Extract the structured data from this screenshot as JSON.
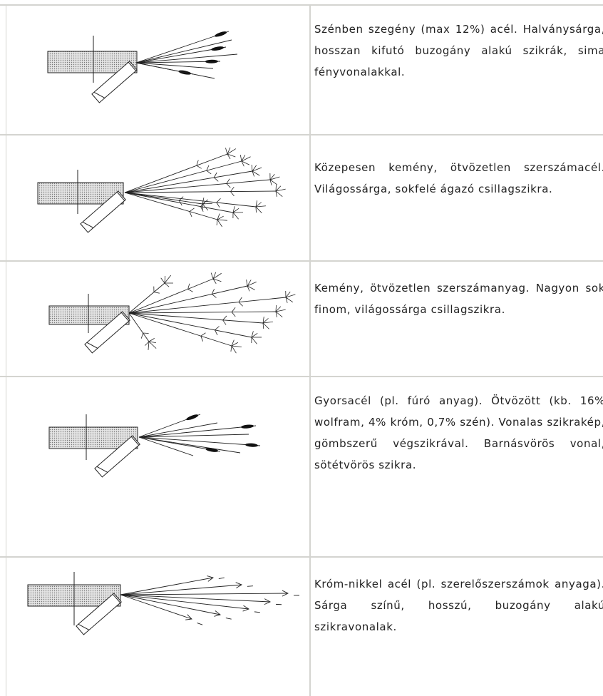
{
  "table": {
    "rows": [
      {
        "description": "Szénben szegény (max 12%) acél. Halványsárga, hosszan kifutó buzogány alakú szikrák, sima fényvonalakkal."
      },
      {
        "description": "Közepesen kemény, ötvözetlen szerszámacél. Világossárga, sokfelé ágazó csillagszikra."
      },
      {
        "description": "Kemény, ötvözetlen szerszámanyag. Nagyon sok finom, világossárga csillagszikra."
      },
      {
        "description": "Gyorsacél (pl. fúró anyag). Ötvözött (kb. 16% wolfram, 4% króm, 0,7% szén). Vonalas szikrakép, gömbszerű végszikrával. Barnásvörös vonal, sötétvörös szikra."
      },
      {
        "description": "Króm-nikkel acél (pl. szerelőszerszámok anyaga). Sárga színű, hosszú, buzogány alakú szikravonalak."
      }
    ]
  }
}
